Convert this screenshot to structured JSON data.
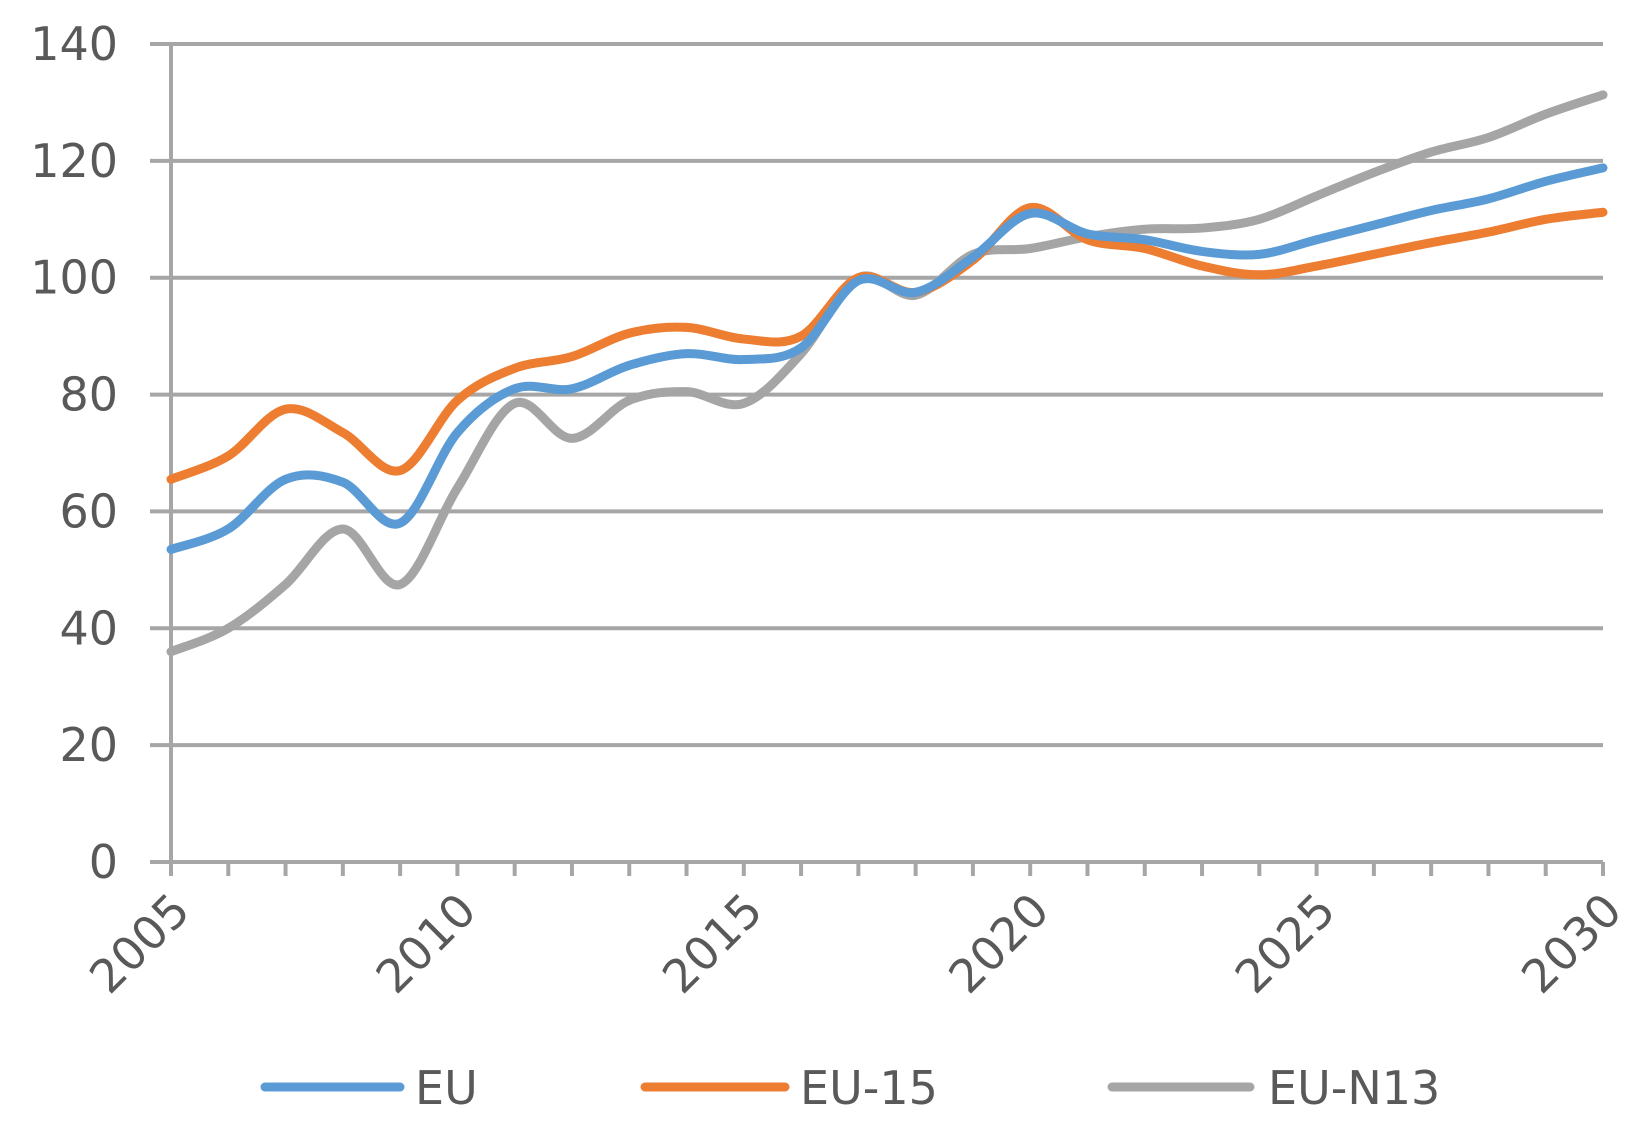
{
  "chart_data": {
    "type": "line",
    "x": [
      2005,
      2006,
      2007,
      2008,
      2009,
      2010,
      2011,
      2012,
      2013,
      2014,
      2015,
      2016,
      2017,
      2018,
      2019,
      2020,
      2021,
      2022,
      2023,
      2024,
      2025,
      2026,
      2027,
      2028,
      2029,
      2030
    ],
    "xlim": [
      2005,
      2030
    ],
    "ylim": [
      0,
      140
    ],
    "y_ticks": [
      "0",
      "20",
      "40",
      "60",
      "80",
      "100",
      "120",
      "140"
    ],
    "x_tick_labels": [
      "2005",
      "2010",
      "2015",
      "2020",
      "2025",
      "2030"
    ],
    "x_tick_values": [
      2005,
      2010,
      2015,
      2020,
      2025,
      2030
    ],
    "grid": true,
    "legend_position": "bottom",
    "series": [
      {
        "name": "EU",
        "color": "#5B9BD5",
        "values": [
          53.5,
          57,
          65.5,
          65,
          58,
          73.5,
          81,
          81,
          85,
          87,
          86,
          88,
          99.5,
          97.5,
          103.5,
          111,
          107.5,
          106.5,
          104.5,
          104,
          106.5,
          109,
          111.5,
          113.5,
          116.5,
          118.8
        ]
      },
      {
        "name": "EU-15",
        "color": "#ED7D31",
        "values": [
          65.5,
          69.5,
          77.5,
          73.5,
          67,
          79,
          84.5,
          86.5,
          90.5,
          91.5,
          89.5,
          90,
          100,
          97.5,
          103,
          112,
          106.5,
          105,
          102,
          100.5,
          102,
          104,
          106,
          107.8,
          110,
          111.2
        ]
      },
      {
        "name": "EU-N13",
        "color": "#A5A5A5",
        "values": [
          36,
          40,
          47.5,
          57,
          47.5,
          64,
          78.5,
          72.5,
          79,
          80.5,
          78.5,
          87,
          100,
          97,
          104,
          105,
          107,
          108.3,
          108.5,
          110,
          114,
          118,
          121.5,
          124,
          128,
          131.3
        ]
      }
    ]
  }
}
